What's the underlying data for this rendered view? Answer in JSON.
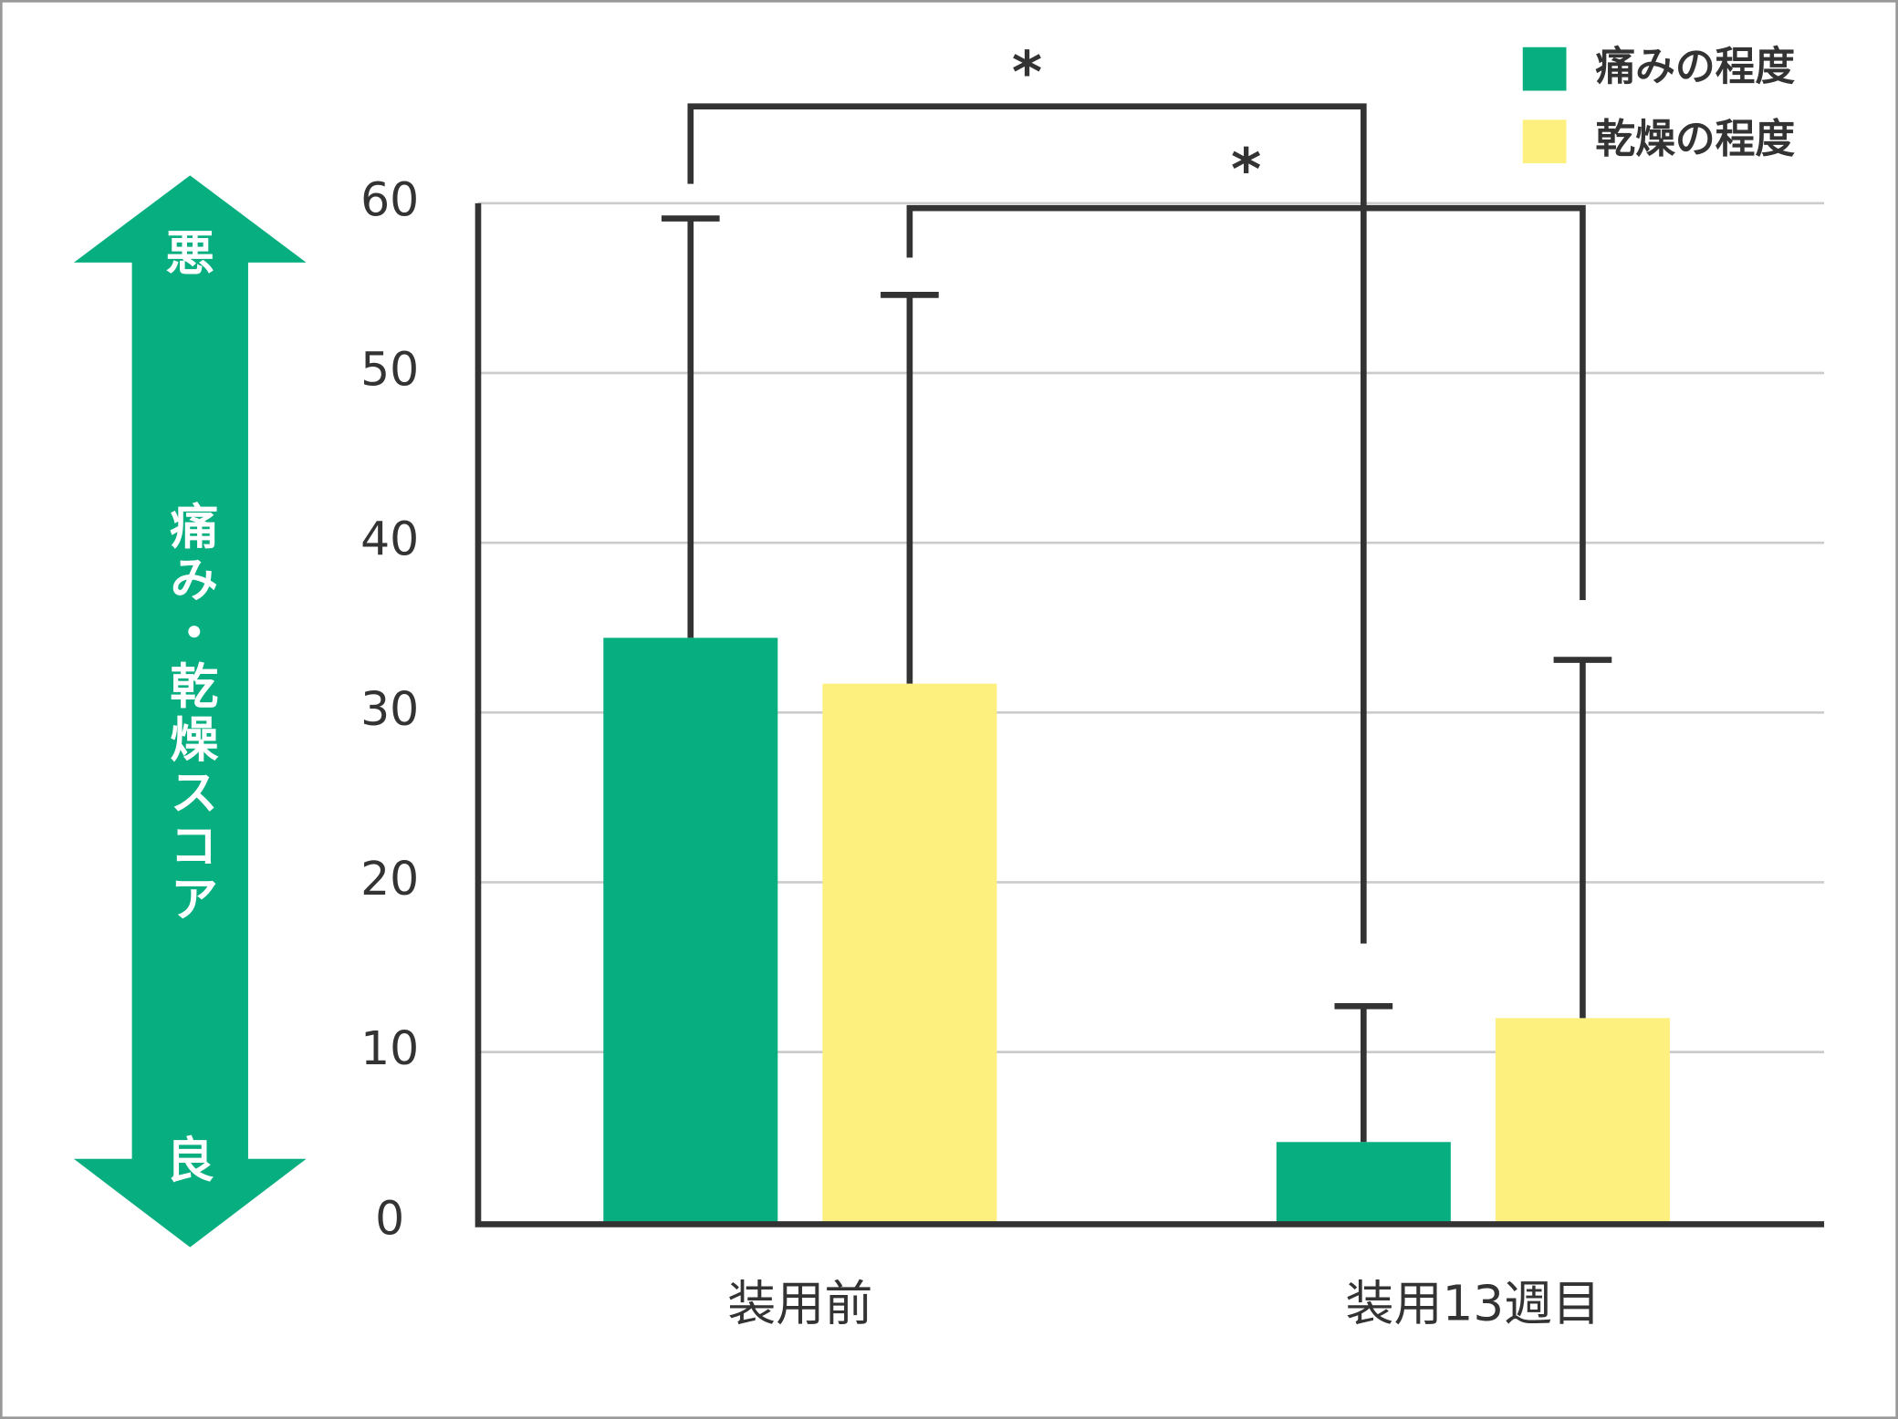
{
  "chart_data": {
    "type": "bar",
    "ylabel": "痛み・乾燥スコア",
    "ylabel_top": "悪",
    "ylabel_bottom": "良",
    "categories": [
      "装用前",
      "装用13週目"
    ],
    "series": [
      {
        "name": "痛みの程度",
        "color": "#07ae80",
        "values": [
          34.4,
          4.7
        ],
        "errors": [
          24.7,
          8.0
        ]
      },
      {
        "name": "乾燥の程度",
        "color": "#fef07e",
        "values": [
          31.7,
          12.0
        ],
        "errors": [
          22.9,
          21.1
        ]
      }
    ],
    "ylim": [
      0,
      60
    ],
    "yticks": [
      0,
      10,
      20,
      30,
      40,
      50,
      60
    ],
    "grid": true,
    "annotations": [
      {
        "text": "*"
      },
      {
        "text": "*"
      }
    ],
    "legend": "top-right"
  }
}
